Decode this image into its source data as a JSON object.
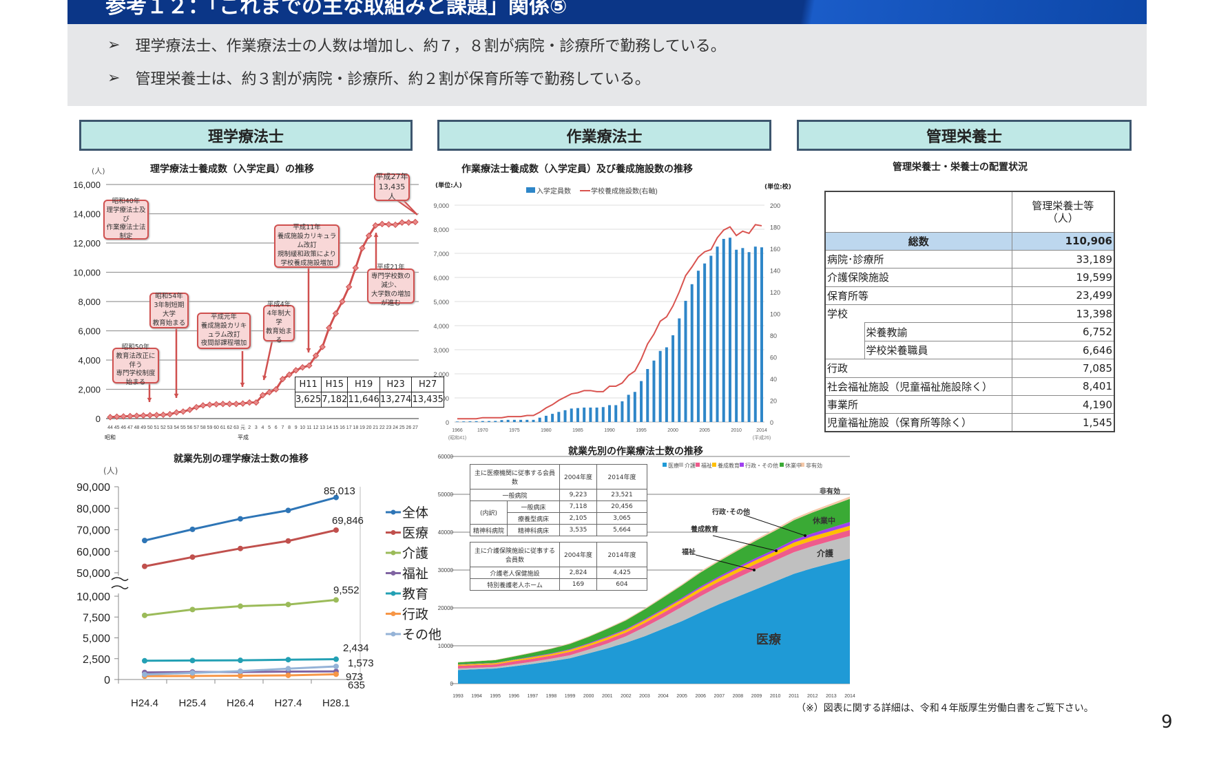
{
  "header": {
    "title": "参考１２：「これまでの主な取組みと課題」関係⑤"
  },
  "bullets": [
    "理学療法士、作業療法士の人数は増加し、約７，８割が病院・診療所で勤務している。",
    "管理栄養士は、約３割が病院・診療所、約２割が保育所等で勤務している。"
  ],
  "bullet_icon": "arrowhead-bullet-icon",
  "sections": {
    "pt": "理学療法士",
    "ot": "作業療法士",
    "nutrition": "管理栄養士"
  },
  "chart_data": [
    {
      "type": "line",
      "title": "理学療法士養成数（入学定員）の推移",
      "ylabel": "(人)",
      "ylim": [
        0,
        16000
      ],
      "yticks": [
        "0",
        "2,000",
        "4,000",
        "6,000",
        "8,000",
        "10,000",
        "12,000",
        "14,000",
        "16,000"
      ],
      "era_labels": [
        "昭和",
        "平成"
      ],
      "categories": [
        "44",
        "45",
        "46",
        "47",
        "48",
        "49",
        "50",
        "51",
        "52",
        "53",
        "54",
        "55",
        "56",
        "57",
        "58",
        "59",
        "60",
        "61",
        "62",
        "63",
        "元",
        "2",
        "3",
        "4",
        "5",
        "6",
        "7",
        "8",
        "9",
        "10",
        "11",
        "12",
        "13",
        "14",
        "15",
        "16",
        "17",
        "18",
        "19",
        "20",
        "21",
        "22",
        "23",
        "24",
        "25",
        "26",
        "27"
      ],
      "values": [
        100,
        130,
        150,
        170,
        190,
        210,
        230,
        240,
        260,
        300,
        420,
        480,
        600,
        780,
        900,
        950,
        980,
        1000,
        1000,
        1000,
        1030,
        1100,
        1100,
        1600,
        1800,
        2000,
        2700,
        3000,
        3300,
        3500,
        3625,
        4300,
        4900,
        6200,
        7182,
        8000,
        9000,
        10300,
        11646,
        12500,
        13200,
        13300,
        13274,
        13250,
        13400,
        13400,
        13435
      ],
      "color": "#d0504f",
      "grid": true,
      "annotations": [
        "昭和40年\n理学療法士及び\n作業療法士法制定",
        "昭和50年\n教育法改正に伴う\n専門学校制度始まる",
        "昭和54年\n3年制短期大学\n教育始まる",
        "平成元年\n養成施設カリキュラム改訂\n夜間部課程増加",
        "平成4年\n4年制大学\n教育始まる",
        "平成11年\n養成施設カリキュラム改訂\n規制緩和政策により\n学校養成施設増加",
        "平成21年\n専門学校数の減少、\n大学数の増加が進む",
        "平成27年\n13,435人"
      ],
      "inset_table": {
        "headers": [
          "H11",
          "H15",
          "H19",
          "H23",
          "H27"
        ],
        "values": [
          "3,625",
          "7,182",
          "11,646",
          "13,274",
          "13,435"
        ]
      }
    },
    {
      "type": "line",
      "title": "就業先別の理学療法士数の推移",
      "ylabel": "(人)",
      "y_axis_break": [
        10000,
        50000
      ],
      "yticks_upper": [
        "90,000",
        "80,000",
        "70,000",
        "60,000",
        "50,000"
      ],
      "yticks_lower": [
        "10,000",
        "7,500",
        "5,000",
        "2,500",
        "0"
      ],
      "categories": [
        "H24.4",
        "H25.4",
        "H26.4",
        "H27.4",
        "H28.1"
      ],
      "legend": "right",
      "series": [
        {
          "name": "全体",
          "values": [
            65000,
            70200,
            75100,
            79000,
            85013
          ],
          "color": "#2e75b6",
          "marker": "diamond"
        },
        {
          "name": "医療",
          "values": [
            53000,
            57300,
            61300,
            64800,
            69846
          ],
          "color": "#c0504d",
          "marker": "square"
        },
        {
          "name": "介護",
          "values": [
            7700,
            8400,
            8800,
            9000,
            9552
          ],
          "color": "#9bbb59",
          "marker": "triangle"
        },
        {
          "name": "福祉",
          "values": [
            850,
            900,
            900,
            950,
            973
          ],
          "color": "#8064a2",
          "marker": "x"
        },
        {
          "name": "教育",
          "values": [
            2250,
            2280,
            2300,
            2380,
            2434
          ],
          "color": "#23a0b4",
          "marker": "star"
        },
        {
          "name": "行政",
          "values": [
            400,
            420,
            450,
            500,
            635
          ],
          "color": "#f79646",
          "marker": "circle"
        },
        {
          "name": "その他",
          "values": [
            600,
            800,
            1000,
            1300,
            1573
          ],
          "color": "#95b3d7",
          "marker": "plus"
        }
      ],
      "data_labels": [
        "85,013",
        "69,846",
        "9,552",
        "2,434",
        "1,573",
        "973",
        "635"
      ]
    },
    {
      "type": "bar",
      "title": "作業療法士養成数（入学定員）及び養成施設数の推移",
      "ylabel_left": "(単位:人)",
      "ylabel_right": "(単位:校)",
      "ylim_left": [
        0,
        9000
      ],
      "ylim_right": [
        0,
        200
      ],
      "yticks_left": [
        "0",
        "1,000",
        "2,000",
        "3,000",
        "4,000",
        "5,000",
        "6,000",
        "7,000",
        "8,000",
        "9,000"
      ],
      "yticks_right": [
        "0",
        "20",
        "40",
        "60",
        "80",
        "100",
        "120",
        "140",
        "160",
        "180",
        "200"
      ],
      "x_start": 1966,
      "x_ticks": [
        "1966",
        "1970",
        "1975",
        "1980",
        "1985",
        "1990",
        "1995",
        "2000",
        "2005",
        "2010",
        "2014"
      ],
      "x_sub_labels": [
        "(昭和41)",
        "(平成26)"
      ],
      "legend": "top",
      "series": [
        {
          "name": "入学定員数",
          "type": "bar",
          "color": "#2e86c8",
          "values": [
            20,
            25,
            30,
            35,
            40,
            40,
            45,
            80,
            90,
            90,
            90,
            90,
            90,
            180,
            260,
            340,
            420,
            490,
            560,
            580,
            600,
            600,
            600,
            620,
            700,
            700,
            860,
            1130,
            1250,
            1700,
            2200,
            2550,
            2950,
            3100,
            3600,
            4300,
            5030,
            5720,
            6280,
            6580,
            6900,
            7280,
            7600,
            7650,
            7150,
            7220,
            7050,
            7280,
            7250
          ]
        },
        {
          "name": "学校養成施設数(右軸)",
          "type": "line",
          "color": "#d9534f",
          "values": [
            3,
            3,
            3,
            3,
            4,
            4,
            4,
            4,
            5,
            5,
            5,
            6,
            6,
            9,
            13,
            16,
            20,
            23,
            26,
            27,
            29,
            29,
            28,
            28,
            33,
            33,
            36,
            43,
            47,
            58,
            72,
            81,
            93,
            97,
            107,
            120,
            135,
            143,
            152,
            157,
            159,
            170,
            177,
            180,
            172,
            176,
            174,
            182,
            181
          ]
        }
      ],
      "grid": true
    },
    {
      "type": "area",
      "title": "就業先別の作業療法士数の推移",
      "ylim": [
        0,
        60000
      ],
      "yticks": [
        "0",
        "10000",
        "20000",
        "30000",
        "40000",
        "50000",
        "60000"
      ],
      "categories": [
        "1993",
        "1994",
        "1995",
        "1996",
        "1997",
        "1998",
        "1999",
        "2000",
        "2001",
        "2002",
        "2003",
        "2004",
        "2005",
        "2006",
        "2007",
        "2008",
        "2009",
        "2010",
        "2011",
        "2012",
        "2013",
        "2014"
      ],
      "legend": "top-right",
      "series": [
        {
          "name": "医療",
          "color": "#1f9ad6",
          "values": [
            3600,
            3800,
            4000,
            4600,
            5200,
            5900,
            6700,
            8000,
            9300,
            10800,
            12500,
            14500,
            16500,
            18800,
            21000,
            23000,
            25000,
            27000,
            29000,
            30500,
            31800,
            33000
          ]
        },
        {
          "name": "介護",
          "color": "#c0c0c0",
          "values": [
            400,
            400,
            400,
            500,
            600,
            700,
            800,
            1000,
            1300,
            1700,
            2400,
            3000,
            3800,
            4300,
            4700,
            5000,
            5300,
            5500,
            5700,
            5800,
            5900,
            6000
          ]
        },
        {
          "name": "福祉",
          "color": "#ef5b8c",
          "values": [
            700,
            700,
            700,
            800,
            800,
            800,
            900,
            900,
            1000,
            1000,
            1100,
            1200,
            1200,
            1300,
            1300,
            1400,
            1400,
            1400,
            1500,
            1500,
            1500,
            1600
          ]
        },
        {
          "name": "養成教育",
          "color": "#ffc000",
          "values": [
            300,
            300,
            300,
            350,
            400,
            450,
            500,
            550,
            600,
            650,
            700,
            750,
            800,
            850,
            900,
            950,
            1000,
            1000,
            1050,
            1100,
            1100,
            1100
          ]
        },
        {
          "name": "行政・その他",
          "color": "#a040f0",
          "values": [
            100,
            100,
            100,
            100,
            150,
            150,
            200,
            200,
            250,
            250,
            300,
            300,
            350,
            400,
            450,
            500,
            550,
            600,
            700,
            800,
            900,
            1000
          ]
        },
        {
          "name": "休業中",
          "color": "#3aaa35",
          "values": [
            500,
            600,
            700,
            800,
            1000,
            1200,
            1400,
            1700,
            2000,
            2300,
            2600,
            3000,
            3300,
            3700,
            4000,
            4300,
            4600,
            4900,
            5200,
            5500,
            5800,
            6100
          ]
        },
        {
          "name": "非有効",
          "color": "#f5c9a8",
          "values": [
            100,
            100,
            100,
            150,
            150,
            150,
            200,
            200,
            200,
            250,
            250,
            300,
            300,
            350,
            350,
            400,
            400,
            450,
            500,
            500,
            550,
            600
          ]
        }
      ],
      "area_labels": {
        "medical": "医療",
        "care": "介護",
        "welfare": "福祉",
        "education": "養成教育",
        "admin": "行政･その他",
        "leave": "休業中",
        "invalid": "非有効"
      },
      "inset_table_1": {
        "header": [
          "主に医療機関に従事する会員数",
          "2004年度",
          "2014年度"
        ],
        "general_hospital": [
          "一般病院",
          "9,223",
          "23,521"
        ],
        "breakdown_label": "(内訳)",
        "general_beds": [
          "一般病床",
          "7,118",
          "20,456"
        ],
        "care_beds": [
          "療養型病床",
          "2,105",
          "3,065"
        ],
        "psychiatric": [
          "精神科病院",
          "精神科病床",
          "3,535",
          "5,664"
        ]
      },
      "inset_table_2": {
        "header": [
          "主に介護保険施設に従事する会員数",
          "2004年度",
          "2014年度"
        ],
        "rows": [
          [
            "介護老人保健施設",
            "2,824",
            "4,425"
          ],
          [
            "特別養護老人ホーム",
            "169",
            "604"
          ]
        ]
      }
    }
  ],
  "nutrition": {
    "title": "管理栄養士・栄養士の配置状況",
    "column_header": "管理栄養士等\n（人）",
    "total": {
      "label": "総数",
      "value": "110,906"
    },
    "rows": [
      {
        "label": "病院･診療所",
        "value": "33,189"
      },
      {
        "label": "介護保険施設",
        "value": "19,599"
      },
      {
        "label": "保育所等",
        "value": "23,499"
      },
      {
        "label": "学校",
        "value": "13,398"
      },
      {
        "label": "栄養教諭",
        "value": "6,752"
      },
      {
        "label": "学校栄養職員",
        "value": "6,646"
      },
      {
        "label": "行政",
        "value": "7,085"
      },
      {
        "label": "社会福祉施設（児童福祉施設除く）",
        "value": "8,401"
      },
      {
        "label": "事業所",
        "value": "4,190"
      },
      {
        "label": "児童福祉施設（保育所等除く）",
        "value": "1,545"
      }
    ],
    "total_bg": "#bdd7ee"
  },
  "footnote": "（※）図表に関する詳細は、令和４年版厚生労働白書をご覧下さい。",
  "page_number": "9"
}
